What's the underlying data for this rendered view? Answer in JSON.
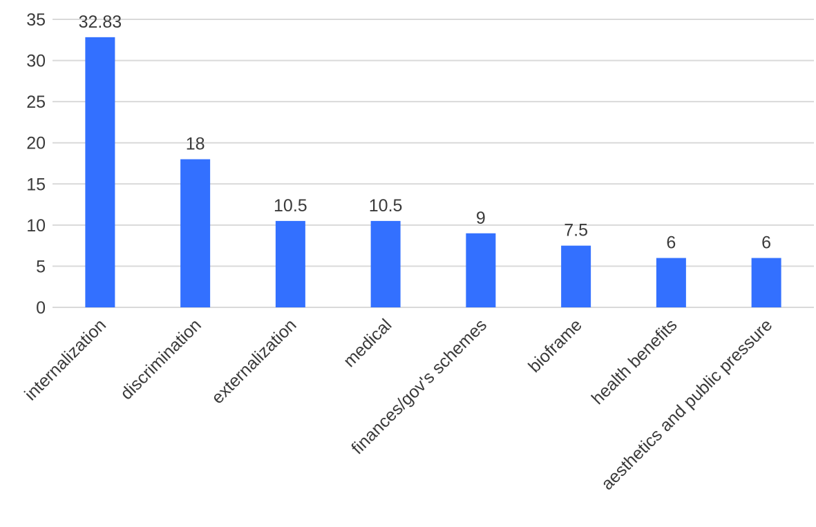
{
  "chart_data": {
    "type": "bar",
    "categories": [
      "internalization",
      "discrimination",
      "externalization",
      "medical",
      "finances/gov's schemes",
      "bioframe",
      "health benefits",
      "aesthetics and public pressure"
    ],
    "values": [
      32.83,
      18,
      10.5,
      10.5,
      9,
      7.5,
      6,
      6
    ],
    "data_labels": [
      "32.83",
      "18",
      "10.5",
      "10.5",
      "9",
      "7.5",
      "6",
      "6"
    ],
    "ylim": [
      0,
      35
    ],
    "yticks": [
      0,
      5,
      10,
      15,
      20,
      25,
      30,
      35
    ],
    "grid": true,
    "legend": "none",
    "bar_color": "#3370ff"
  }
}
